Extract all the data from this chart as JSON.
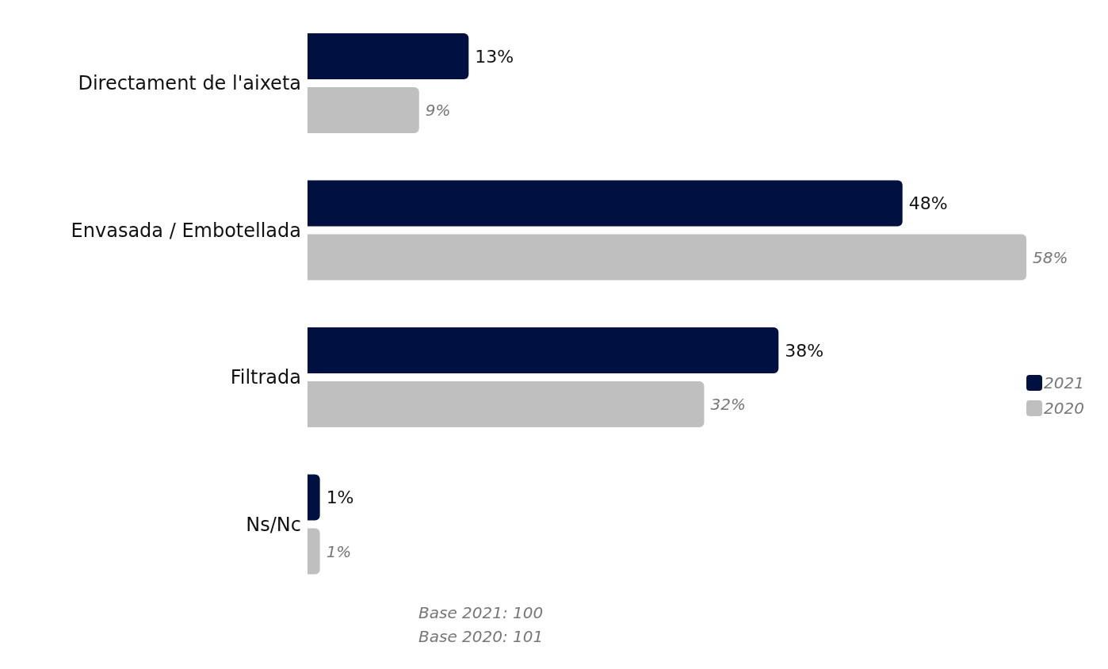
{
  "chart_data": {
    "type": "bar",
    "orientation": "horizontal",
    "categories": [
      "Directament de l'aixeta",
      "Envasada / Embotellada",
      "Filtrada",
      "Ns/Nc"
    ],
    "series": [
      {
        "name": "2021",
        "color": "#001040",
        "values": [
          13,
          48,
          38,
          1
        ],
        "value_labels": [
          "13%",
          "48%",
          "38%",
          "1%"
        ]
      },
      {
        "name": "2020",
        "color": "#bfbfbf",
        "values": [
          9,
          58,
          32,
          1
        ],
        "value_labels": [
          "9%",
          "58%",
          "32%",
          "1%"
        ]
      }
    ],
    "legend": "right",
    "grid": false,
    "annotations": [
      "Base 2021: 100",
      "Base 2020: 101"
    ]
  }
}
